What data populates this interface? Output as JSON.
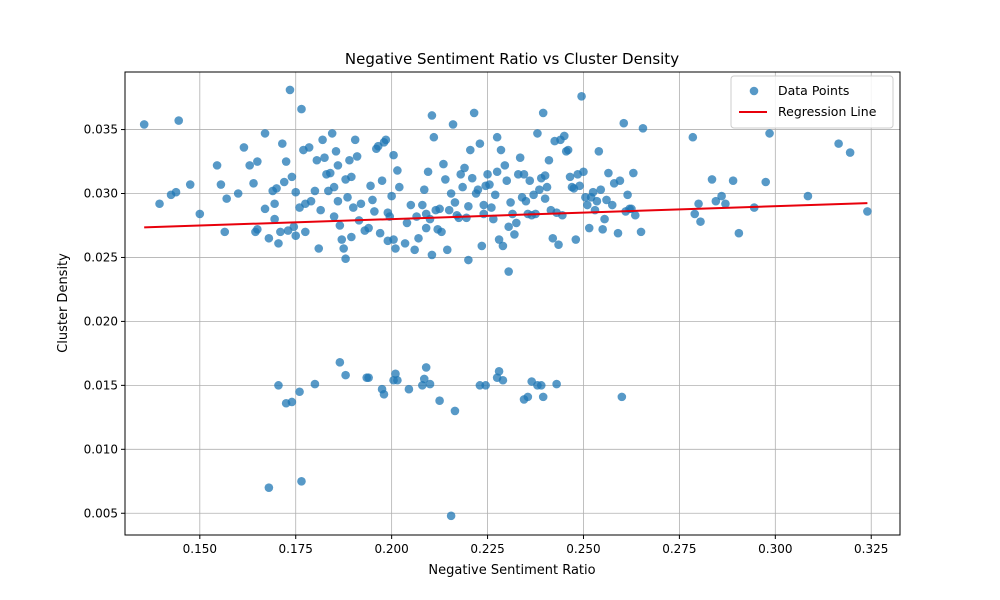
{
  "chart_data": {
    "type": "scatter",
    "title": "Negative Sentiment Ratio vs Cluster Density",
    "xlabel": "Negative Sentiment Ratio",
    "ylabel": "Cluster Density",
    "xlim": [
      0.1305,
      0.3325
    ],
    "ylim": [
      0.0033,
      0.0395
    ],
    "xticks": [
      0.15,
      0.175,
      0.2,
      0.225,
      0.25,
      0.275,
      0.3,
      0.325
    ],
    "xtick_labels": [
      "0.150",
      "0.175",
      "0.200",
      "0.225",
      "0.250",
      "0.275",
      "0.300",
      "0.325"
    ],
    "yticks": [
      0.005,
      0.01,
      0.015,
      0.02,
      0.025,
      0.03,
      0.035
    ],
    "ytick_labels": [
      "0.005",
      "0.010",
      "0.015",
      "0.020",
      "0.025",
      "0.030",
      "0.035"
    ],
    "grid": true,
    "legend_position": "top-right",
    "colors": {
      "points": "#1f77b4",
      "regression": "#e8000b"
    },
    "series": [
      {
        "name": "Data Points",
        "kind": "scatter",
        "points": [
          [
            0.1355,
            0.0354
          ],
          [
            0.1395,
            0.0292
          ],
          [
            0.1425,
            0.0299
          ],
          [
            0.1438,
            0.0301
          ],
          [
            0.1445,
            0.0357
          ],
          [
            0.1475,
            0.0307
          ],
          [
            0.15,
            0.0284
          ],
          [
            0.1545,
            0.0322
          ],
          [
            0.1555,
            0.0307
          ],
          [
            0.1565,
            0.027
          ],
          [
            0.157,
            0.0296
          ],
          [
            0.16,
            0.03
          ],
          [
            0.1615,
            0.0336
          ],
          [
            0.163,
            0.0322
          ],
          [
            0.164,
            0.0308
          ],
          [
            0.165,
            0.0325
          ],
          [
            0.1645,
            0.027
          ],
          [
            0.165,
            0.0272
          ],
          [
            0.167,
            0.0347
          ],
          [
            0.167,
            0.0288
          ],
          [
            0.168,
            0.0265
          ],
          [
            0.169,
            0.0302
          ],
          [
            0.1695,
            0.0292
          ],
          [
            0.17,
            0.0304
          ],
          [
            0.1695,
            0.028
          ],
          [
            0.1705,
            0.0261
          ],
          [
            0.171,
            0.027
          ],
          [
            0.1715,
            0.0339
          ],
          [
            0.172,
            0.0309
          ],
          [
            0.1725,
            0.0325
          ],
          [
            0.173,
            0.0271
          ],
          [
            0.1735,
            0.0381
          ],
          [
            0.174,
            0.0313
          ],
          [
            0.1745,
            0.0274
          ],
          [
            0.175,
            0.0301
          ],
          [
            0.175,
            0.0267
          ],
          [
            0.176,
            0.0289
          ],
          [
            0.1765,
            0.0366
          ],
          [
            0.177,
            0.0334
          ],
          [
            0.1775,
            0.0292
          ],
          [
            0.1775,
            0.027
          ],
          [
            0.1785,
            0.0336
          ],
          [
            0.179,
            0.0294
          ],
          [
            0.18,
            0.0302
          ],
          [
            0.1805,
            0.0326
          ],
          [
            0.181,
            0.0257
          ],
          [
            0.1815,
            0.0287
          ],
          [
            0.182,
            0.0342
          ],
          [
            0.1825,
            0.0328
          ],
          [
            0.183,
            0.0315
          ],
          [
            0.1835,
            0.0302
          ],
          [
            0.184,
            0.0316
          ],
          [
            0.1845,
            0.0347
          ],
          [
            0.185,
            0.0305
          ],
          [
            0.185,
            0.0282
          ],
          [
            0.1855,
            0.0333
          ],
          [
            0.186,
            0.0322
          ],
          [
            0.186,
            0.0294
          ],
          [
            0.1865,
            0.0275
          ],
          [
            0.187,
            0.0264
          ],
          [
            0.1875,
            0.0257
          ],
          [
            0.188,
            0.0249
          ],
          [
            0.188,
            0.0311
          ],
          [
            0.1885,
            0.0297
          ],
          [
            0.189,
            0.0326
          ],
          [
            0.1895,
            0.0266
          ],
          [
            0.1895,
            0.0313
          ],
          [
            0.19,
            0.0289
          ],
          [
            0.1905,
            0.0342
          ],
          [
            0.191,
            0.0329
          ],
          [
            0.1915,
            0.0279
          ],
          [
            0.192,
            0.0292
          ],
          [
            0.193,
            0.0271
          ],
          [
            0.194,
            0.0273
          ],
          [
            0.1945,
            0.0306
          ],
          [
            0.195,
            0.0295
          ],
          [
            0.1955,
            0.0286
          ],
          [
            0.196,
            0.0335
          ],
          [
            0.1965,
            0.0337
          ],
          [
            0.197,
            0.0269
          ],
          [
            0.1975,
            0.031
          ],
          [
            0.198,
            0.034
          ],
          [
            0.1985,
            0.0342
          ],
          [
            0.199,
            0.0285
          ],
          [
            0.199,
            0.0263
          ],
          [
            0.1995,
            0.0282
          ],
          [
            0.2,
            0.0298
          ],
          [
            0.2005,
            0.0264
          ],
          [
            0.2005,
            0.033
          ],
          [
            0.201,
            0.0257
          ],
          [
            0.2015,
            0.0318
          ],
          [
            0.202,
            0.0305
          ],
          [
            0.2035,
            0.0261
          ],
          [
            0.204,
            0.0277
          ],
          [
            0.205,
            0.0291
          ],
          [
            0.206,
            0.0256
          ],
          [
            0.2065,
            0.0282
          ],
          [
            0.207,
            0.0265
          ],
          [
            0.208,
            0.0291
          ],
          [
            0.2085,
            0.0303
          ],
          [
            0.209,
            0.0284
          ],
          [
            0.209,
            0.0273
          ],
          [
            0.2095,
            0.0317
          ],
          [
            0.21,
            0.028
          ],
          [
            0.2105,
            0.0252
          ],
          [
            0.2105,
            0.0361
          ],
          [
            0.211,
            0.0344
          ],
          [
            0.2115,
            0.0287
          ],
          [
            0.212,
            0.0272
          ],
          [
            0.2125,
            0.0288
          ],
          [
            0.213,
            0.027
          ],
          [
            0.2135,
            0.0323
          ],
          [
            0.214,
            0.0311
          ],
          [
            0.2145,
            0.0256
          ],
          [
            0.215,
            0.0287
          ],
          [
            0.2155,
            0.03
          ],
          [
            0.216,
            0.0354
          ],
          [
            0.2165,
            0.0293
          ],
          [
            0.217,
            0.0283
          ],
          [
            0.2175,
            0.0281
          ],
          [
            0.218,
            0.0315
          ],
          [
            0.2185,
            0.0305
          ],
          [
            0.219,
            0.032
          ],
          [
            0.2195,
            0.0281
          ],
          [
            0.22,
            0.0248
          ],
          [
            0.22,
            0.029
          ],
          [
            0.2205,
            0.0334
          ],
          [
            0.221,
            0.0312
          ],
          [
            0.2215,
            0.0363
          ],
          [
            0.222,
            0.03
          ],
          [
            0.2225,
            0.0303
          ],
          [
            0.223,
            0.0339
          ],
          [
            0.2235,
            0.0259
          ],
          [
            0.224,
            0.0291
          ],
          [
            0.224,
            0.0284
          ],
          [
            0.2245,
            0.0306
          ],
          [
            0.225,
            0.0315
          ],
          [
            0.2255,
            0.0307
          ],
          [
            0.226,
            0.0289
          ],
          [
            0.2265,
            0.028
          ],
          [
            0.227,
            0.0299
          ],
          [
            0.2275,
            0.0317
          ],
          [
            0.2275,
            0.0344
          ],
          [
            0.228,
            0.0264
          ],
          [
            0.2285,
            0.0334
          ],
          [
            0.229,
            0.0259
          ],
          [
            0.2295,
            0.0322
          ],
          [
            0.23,
            0.031
          ],
          [
            0.2305,
            0.0239
          ],
          [
            0.2305,
            0.0274
          ],
          [
            0.231,
            0.0293
          ],
          [
            0.2315,
            0.0284
          ],
          [
            0.232,
            0.0268
          ],
          [
            0.2325,
            0.0277
          ],
          [
            0.233,
            0.0315
          ],
          [
            0.2335,
            0.0328
          ],
          [
            0.234,
            0.0297
          ],
          [
            0.2345,
            0.0315
          ],
          [
            0.235,
            0.0294
          ],
          [
            0.2355,
            0.0284
          ],
          [
            0.236,
            0.031
          ],
          [
            0.2365,
            0.0283
          ],
          [
            0.237,
            0.0299
          ],
          [
            0.2375,
            0.0284
          ],
          [
            0.238,
            0.0347
          ],
          [
            0.2385,
            0.0303
          ],
          [
            0.239,
            0.0312
          ],
          [
            0.2395,
            0.0363
          ],
          [
            0.24,
            0.0314
          ],
          [
            0.24,
            0.0296
          ],
          [
            0.2405,
            0.0305
          ],
          [
            0.241,
            0.0326
          ],
          [
            0.2415,
            0.0287
          ],
          [
            0.242,
            0.0265
          ],
          [
            0.2425,
            0.0341
          ],
          [
            0.243,
            0.0285
          ],
          [
            0.2435,
            0.026
          ],
          [
            0.244,
            0.0342
          ],
          [
            0.2445,
            0.0283
          ],
          [
            0.245,
            0.0345
          ],
          [
            0.2455,
            0.0333
          ],
          [
            0.246,
            0.0334
          ],
          [
            0.2465,
            0.0313
          ],
          [
            0.247,
            0.0305
          ],
          [
            0.2475,
            0.0304
          ],
          [
            0.248,
            0.0264
          ],
          [
            0.2485,
            0.0315
          ],
          [
            0.249,
            0.0306
          ],
          [
            0.2495,
            0.0376
          ],
          [
            0.25,
            0.0317
          ],
          [
            0.2505,
            0.0297
          ],
          [
            0.251,
            0.0291
          ],
          [
            0.2515,
            0.0273
          ],
          [
            0.252,
            0.0297
          ],
          [
            0.2525,
            0.0301
          ],
          [
            0.253,
            0.0287
          ],
          [
            0.2535,
            0.0294
          ],
          [
            0.254,
            0.0333
          ],
          [
            0.2545,
            0.0303
          ],
          [
            0.255,
            0.0272
          ],
          [
            0.2555,
            0.028
          ],
          [
            0.256,
            0.0295
          ],
          [
            0.2565,
            0.0316
          ],
          [
            0.2575,
            0.0291
          ],
          [
            0.258,
            0.0308
          ],
          [
            0.259,
            0.0269
          ],
          [
            0.2595,
            0.031
          ],
          [
            0.2605,
            0.0355
          ],
          [
            0.261,
            0.0286
          ],
          [
            0.2615,
            0.0299
          ],
          [
            0.262,
            0.0288
          ],
          [
            0.2625,
            0.0288
          ],
          [
            0.263,
            0.0316
          ],
          [
            0.2635,
            0.0283
          ],
          [
            0.265,
            0.027
          ],
          [
            0.2655,
            0.0351
          ],
          [
            0.2785,
            0.0344
          ],
          [
            0.279,
            0.0284
          ],
          [
            0.28,
            0.0292
          ],
          [
            0.2805,
            0.0278
          ],
          [
            0.2835,
            0.0311
          ],
          [
            0.2845,
            0.0294
          ],
          [
            0.286,
            0.0298
          ],
          [
            0.287,
            0.0292
          ],
          [
            0.289,
            0.031
          ],
          [
            0.2905,
            0.0269
          ],
          [
            0.2945,
            0.0289
          ],
          [
            0.2975,
            0.0309
          ],
          [
            0.2985,
            0.0347
          ],
          [
            0.3085,
            0.0298
          ],
          [
            0.3165,
            0.0339
          ],
          [
            0.3195,
            0.0332
          ],
          [
            0.324,
            0.0286
          ],
          [
            0.168,
            0.007
          ],
          [
            0.1765,
            0.0075
          ],
          [
            0.2155,
            0.0048
          ],
          [
            0.1705,
            0.015
          ],
          [
            0.1725,
            0.0136
          ],
          [
            0.174,
            0.0137
          ],
          [
            0.176,
            0.0145
          ],
          [
            0.18,
            0.0151
          ],
          [
            0.1865,
            0.0168
          ],
          [
            0.188,
            0.0158
          ],
          [
            0.1935,
            0.0156
          ],
          [
            0.194,
            0.0156
          ],
          [
            0.1975,
            0.0147
          ],
          [
            0.198,
            0.0143
          ],
          [
            0.2005,
            0.0154
          ],
          [
            0.201,
            0.0159
          ],
          [
            0.2015,
            0.0154
          ],
          [
            0.2045,
            0.0147
          ],
          [
            0.208,
            0.015
          ],
          [
            0.2085,
            0.0155
          ],
          [
            0.209,
            0.0164
          ],
          [
            0.21,
            0.0151
          ],
          [
            0.2125,
            0.0138
          ],
          [
            0.2165,
            0.013
          ],
          [
            0.223,
            0.015
          ],
          [
            0.2245,
            0.015
          ],
          [
            0.2275,
            0.0156
          ],
          [
            0.228,
            0.0161
          ],
          [
            0.229,
            0.0154
          ],
          [
            0.2345,
            0.0139
          ],
          [
            0.2355,
            0.0141
          ],
          [
            0.2365,
            0.0153
          ],
          [
            0.238,
            0.015
          ],
          [
            0.239,
            0.015
          ],
          [
            0.2395,
            0.0141
          ],
          [
            0.243,
            0.0151
          ],
          [
            0.26,
            0.0141
          ]
        ]
      },
      {
        "name": "Regression Line",
        "kind": "line",
        "x": [
          0.1355,
          0.324
        ],
        "y": [
          0.02735,
          0.02925
        ]
      }
    ]
  }
}
